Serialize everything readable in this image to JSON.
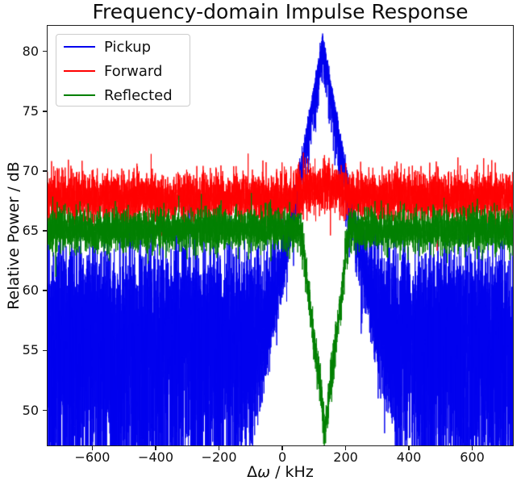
{
  "chart_data": {
    "type": "line",
    "title": "Frequency-domain Impulse Response",
    "xlabel": "Δω / kHz",
    "ylabel": "Relative Power / dB",
    "xlim": [
      -744,
      731
    ],
    "ylim": [
      47.0,
      82.2
    ],
    "xticks": [
      -600,
      -400,
      -200,
      0,
      200,
      400,
      600
    ],
    "yticks": [
      50,
      55,
      60,
      65,
      70,
      75,
      80
    ],
    "grid": false,
    "seed": 42,
    "legend": {
      "position": "upper left",
      "entries": [
        "Pickup",
        "Forward",
        "Reflected"
      ]
    },
    "series": [
      {
        "name": "Pickup",
        "color": "#0000ee",
        "points": 9000,
        "model": {
          "kind": "noisy-peak",
          "noise_floor_db": 57.3,
          "noise_type": "exponential-power",
          "signal_dip_db_coeff": 2.2,
          "signal_jitter_db": 0.35,
          "peak": {
            "center_khz": 128,
            "apex_db": 81.2,
            "slope_db_per_khz": 0.155,
            "shape": "triangular"
          }
        }
      },
      {
        "name": "Forward",
        "color": "#ff0000",
        "points": 6000,
        "model": {
          "kind": "gaussian-band",
          "mean_db": 67.8,
          "sigma_db": 1.05,
          "bump": {
            "center_khz": 130,
            "height_db": 0.9,
            "width_khz": 70
          }
        }
      },
      {
        "name": "Reflected",
        "color": "#008000",
        "points": 6000,
        "model": {
          "kind": "gaussian-band-with-notch",
          "mean_db": 65.1,
          "sigma_db": 0.85,
          "notch": {
            "center_khz": 135,
            "depth_db": 16.7,
            "slope_db_per_khz": 0.22,
            "floor_db": 48.4,
            "shape": "triangular-V"
          }
        }
      }
    ]
  },
  "labels": {
    "xlabel_delta": "Δ",
    "xlabel_omega": "ω",
    "xlabel_unit": " / kHz"
  }
}
